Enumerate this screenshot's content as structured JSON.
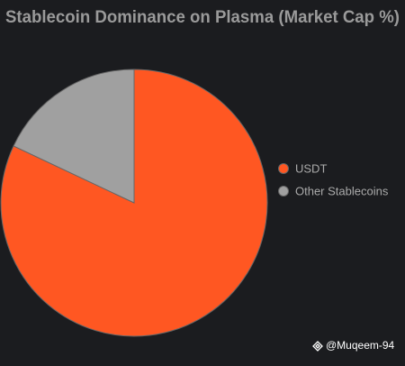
{
  "chart_data": {
    "type": "pie",
    "title": "Stablecoin Dominance on Plasma (Market Cap %)",
    "categories": [
      "USDT",
      "Other Stablecoins"
    ],
    "values": [
      82,
      18
    ],
    "colors": [
      "#ff5722",
      "#a0a0a0"
    ],
    "legend": "right",
    "watermark": "@Muqeem-94"
  }
}
